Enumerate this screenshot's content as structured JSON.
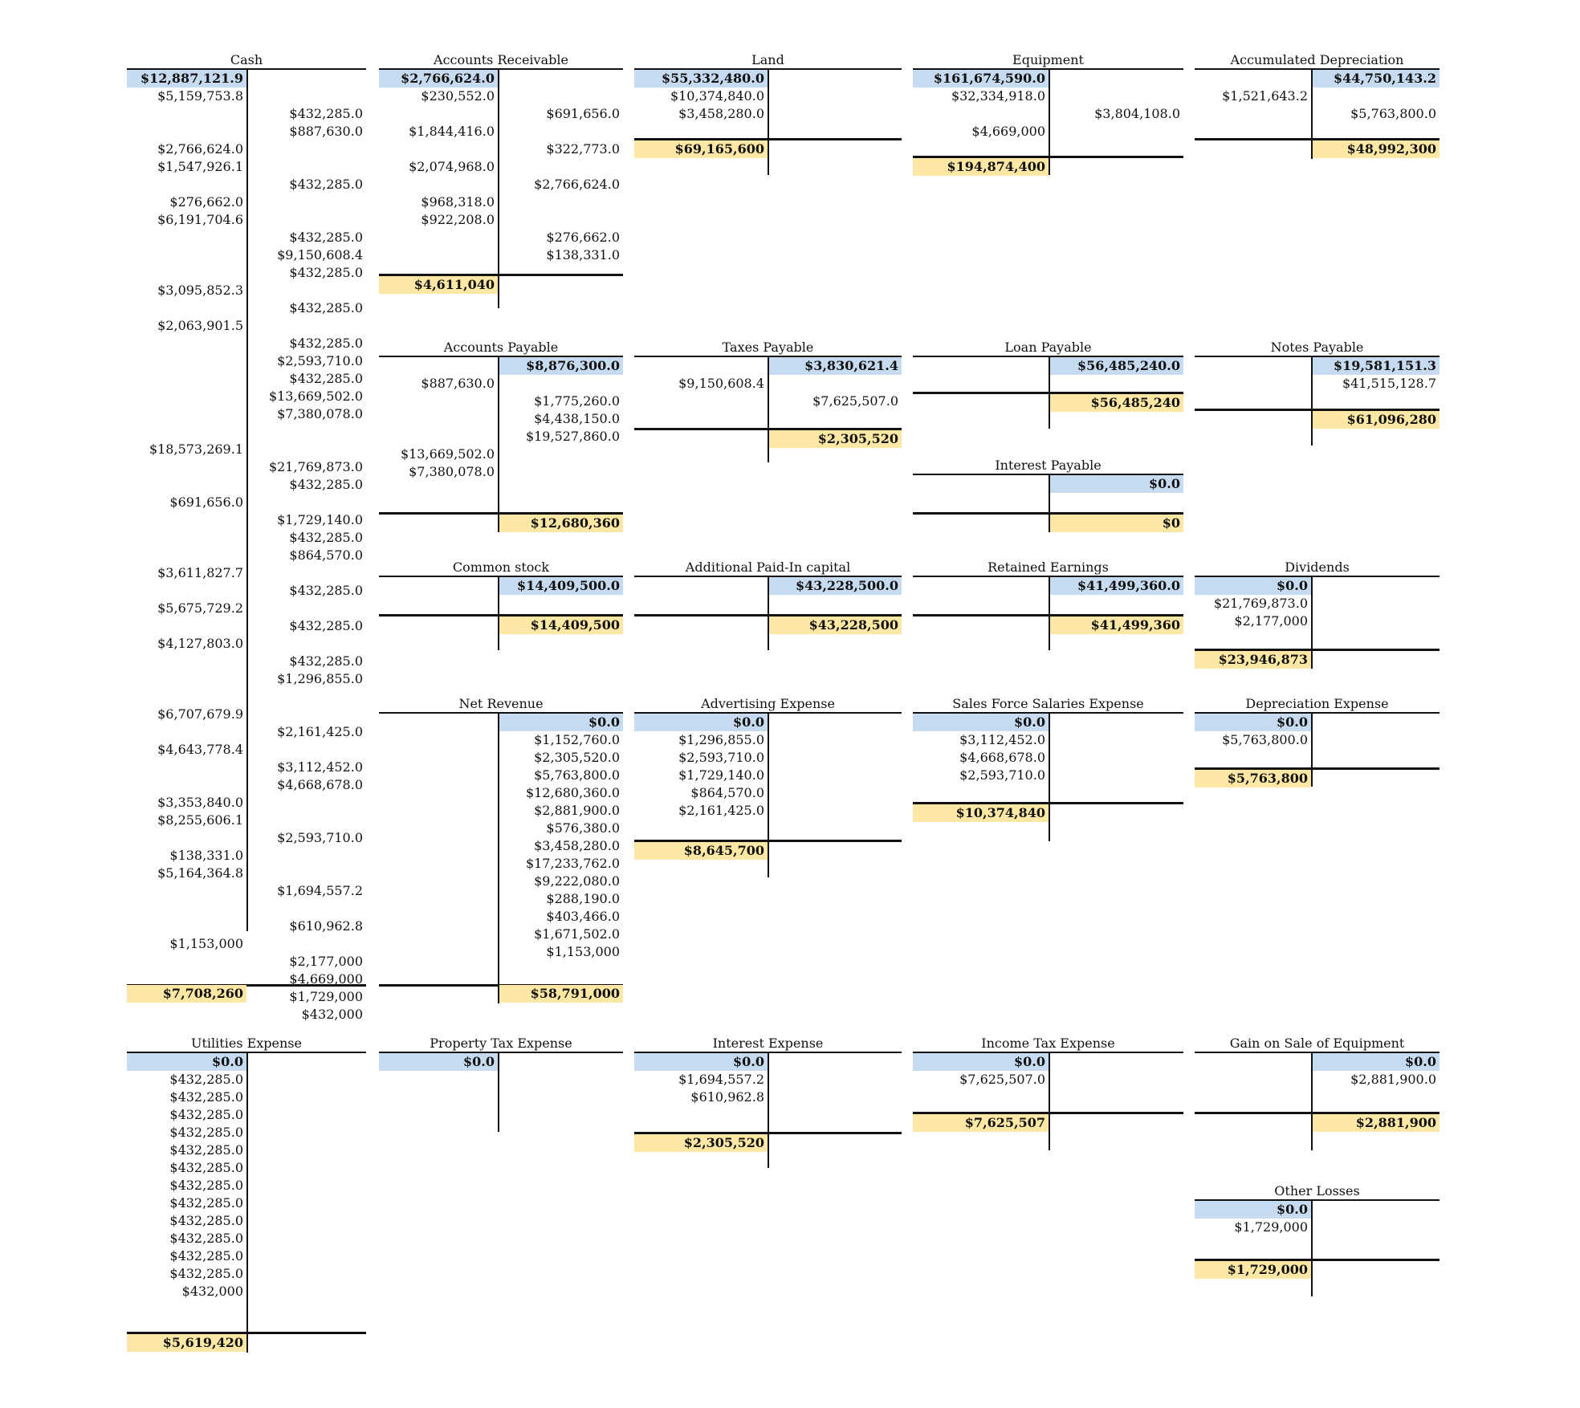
{
  "accounts": [
    {
      "key": "cash",
      "title": "Cash",
      "debit_open": "$12,887,121.9",
      "credit_open": "",
      "debits": [
        "$5,159,753.8",
        "",
        "",
        "$2,766,624.0",
        "$1,547,926.1",
        "",
        "$276,662.0",
        "$6,191,704.6",
        "",
        "",
        "",
        "$3,095,852.3",
        "",
        "$2,063,901.5",
        "",
        "",
        "",
        "",
        "",
        "",
        "$18,573,269.1",
        "",
        "",
        "$691,656.0",
        "",
        "",
        "",
        "$3,611,827.7",
        "",
        "$5,675,729.2",
        "",
        "$4,127,803.0",
        "",
        "",
        "",
        "$6,707,679.9",
        "",
        "$4,643,778.4",
        "",
        "",
        "$3,353,840.0",
        "$8,255,606.1",
        "",
        "$138,331.0",
        "$5,164,364.8",
        "",
        "",
        "",
        "$1,153,000",
        "",
        "",
        "",
        ""
      ],
      "credits": [
        "",
        "$432,285.0",
        "$887,630.0",
        "",
        "",
        "$432,285.0",
        "",
        "",
        "$432,285.0",
        "$9,150,608.4",
        "$432,285.0",
        "",
        "$432,285.0",
        "",
        "$432,285.0",
        "$2,593,710.0",
        "$432,285.0",
        "$13,669,502.0",
        "$7,380,078.0",
        "",
        "",
        "$21,769,873.0",
        "$432,285.0",
        "",
        "$1,729,140.0",
        "$432,285.0",
        "$864,570.0",
        "",
        "$432,285.0",
        "",
        "$432,285.0",
        "",
        "$432,285.0",
        "$1,296,855.0",
        "",
        "",
        "$2,161,425.0",
        "",
        "$3,112,452.0",
        "$4,668,678.0",
        "",
        "",
        "$2,593,710.0",
        "",
        "",
        "$1,694,557.2",
        "",
        "$610,962.8",
        "",
        "$2,177,000",
        "$4,669,000",
        "$1,729,000",
        "$432,000"
      ],
      "debit_total": "$7,708,260",
      "credit_total": ""
    },
    {
      "key": "ar",
      "title": "Accounts Receivable",
      "debit_open": "$2,766,624.0",
      "credit_open": "",
      "debits": [
        "$230,552.0",
        "",
        "$1,844,416.0",
        "",
        "$2,074,968.0",
        "",
        "$968,318.0",
        "$922,208.0",
        "",
        ""
      ],
      "credits": [
        "",
        "$691,656.0",
        "",
        "$322,773.0",
        "",
        "$2,766,624.0",
        "",
        "",
        "$276,662.0",
        "$138,331.0"
      ],
      "debit_total": "$4,611,040",
      "credit_total": ""
    },
    {
      "key": "land",
      "title": "Land",
      "debit_open": "$55,332,480.0",
      "credit_open": "",
      "debits": [
        "$10,374,840.0",
        "$3,458,280.0"
      ],
      "credits": [
        "",
        ""
      ],
      "debit_total": "$69,165,600",
      "credit_total": ""
    },
    {
      "key": "equipment",
      "title": "Equipment",
      "debit_open": "$161,674,590.0",
      "credit_open": "",
      "debits": [
        "$32,334,918.0",
        "",
        "$4,669,000"
      ],
      "credits": [
        "",
        "$3,804,108.0",
        ""
      ],
      "debit_total": "$194,874,400",
      "credit_total": ""
    },
    {
      "key": "accdep",
      "title": "Accumulated Depreciation",
      "debit_open": "",
      "credit_open": "$44,750,143.2",
      "debits": [
        "$1,521,643.2",
        ""
      ],
      "credits": [
        "",
        "$5,763,800.0"
      ],
      "debit_total": "",
      "credit_total": "$48,992,300"
    },
    {
      "key": "ap",
      "title": "Accounts Payable",
      "debit_open": "",
      "credit_open": "$8,876,300.0",
      "debits": [
        "$887,630.0",
        "",
        "",
        "",
        "$13,669,502.0",
        "$7,380,078.0"
      ],
      "credits": [
        "",
        "$1,775,260.0",
        "$4,438,150.0",
        "$19,527,860.0",
        "",
        ""
      ],
      "debit_total": "",
      "credit_total": "$12,680,360"
    },
    {
      "key": "taxes",
      "title": "Taxes Payable",
      "debit_open": "",
      "credit_open": "$3,830,621.4",
      "debits": [
        "$9,150,608.4",
        ""
      ],
      "credits": [
        "",
        "$7,625,507.0"
      ],
      "debit_total": "",
      "credit_total": "$2,305,520"
    },
    {
      "key": "loan",
      "title": "Loan Payable",
      "debit_open": "",
      "credit_open": "$56,485,240.0",
      "debits": [],
      "credits": [],
      "debit_total": "",
      "credit_total": "$56,485,240"
    },
    {
      "key": "notes",
      "title": "Notes Payable",
      "debit_open": "",
      "credit_open": "$19,581,151.3",
      "debits": [
        ""
      ],
      "credits": [
        "$41,515,128.7"
      ],
      "debit_total": "",
      "credit_total": "$61,096,280"
    },
    {
      "key": "interestpay",
      "title": "Interest Payable",
      "debit_open": "",
      "credit_open": "$0.0",
      "debits": [],
      "credits": [],
      "debit_total": "",
      "credit_total": "$0"
    },
    {
      "key": "common",
      "title": "Common stock",
      "debit_open": "",
      "credit_open": "$14,409,500.0",
      "debits": [],
      "credits": [],
      "debit_total": "",
      "credit_total": "$14,409,500"
    },
    {
      "key": "apic",
      "title": "Additional Paid-In capital",
      "debit_open": "",
      "credit_open": "$43,228,500.0",
      "debits": [],
      "credits": [],
      "debit_total": "",
      "credit_total": "$43,228,500"
    },
    {
      "key": "retained",
      "title": "Retained Earnings",
      "debit_open": "",
      "credit_open": "$41,499,360.0",
      "debits": [],
      "credits": [],
      "debit_total": "",
      "credit_total": "$41,499,360"
    },
    {
      "key": "dividends",
      "title": "Dividends",
      "debit_open": "$0.0",
      "credit_open": "",
      "debits": [
        "$21,769,873.0",
        "$2,177,000"
      ],
      "credits": [
        "",
        ""
      ],
      "debit_total": "$23,946,873",
      "credit_total": ""
    },
    {
      "key": "netrev",
      "title": "Net Revenue",
      "debit_open": "",
      "credit_open": "$0.0",
      "debits": [
        "",
        "",
        "",
        "",
        "",
        "",
        "",
        "",
        "",
        "",
        "",
        "",
        "",
        ""
      ],
      "credits": [
        "$1,152,760.0",
        "$2,305,520.0",
        "$5,763,800.0",
        "$12,680,360.0",
        "$2,881,900.0",
        "$576,380.0",
        "$3,458,280.0",
        "$17,233,762.0",
        "$9,222,080.0",
        "$288,190.0",
        "$403,466.0",
        "$1,671,502.0",
        "$1,153,000"
      ],
      "debit_total": "",
      "credit_total": "$58,791,000"
    },
    {
      "key": "adv",
      "title": "Advertising Expense",
      "debit_open": "$0.0",
      "credit_open": "",
      "debits": [
        "$1,296,855.0",
        "$2,593,710.0",
        "$1,729,140.0",
        "$864,570.0",
        "$2,161,425.0"
      ],
      "credits": [
        "",
        "",
        "",
        "",
        ""
      ],
      "debit_total": "$8,645,700",
      "credit_total": ""
    },
    {
      "key": "salaries",
      "title": "Sales Force Salaries Expense",
      "debit_open": "$0.0",
      "credit_open": "",
      "debits": [
        "$3,112,452.0",
        "$4,668,678.0",
        "$2,593,710.0"
      ],
      "credits": [
        "",
        "",
        ""
      ],
      "debit_total": "$10,374,840",
      "credit_total": ""
    },
    {
      "key": "depexp",
      "title": "Depreciation Expense",
      "debit_open": "$0.0",
      "credit_open": "",
      "debits": [
        "$5,763,800.0"
      ],
      "credits": [
        ""
      ],
      "debit_total": "$5,763,800",
      "credit_total": ""
    },
    {
      "key": "utilities",
      "title": "Utilities Expense",
      "debit_open": "$0.0",
      "credit_open": "",
      "debits": [
        "$432,285.0",
        "$432,285.0",
        "$432,285.0",
        "$432,285.0",
        "$432,285.0",
        "$432,285.0",
        "$432,285.0",
        "$432,285.0",
        "$432,285.0",
        "$432,285.0",
        "$432,285.0",
        "$432,285.0",
        "$432,000"
      ],
      "credits": [],
      "debit_total": "$5,619,420",
      "credit_total": ""
    },
    {
      "key": "proptax",
      "title": "Property Tax Expense",
      "debit_open": "$0.0",
      "credit_open": "",
      "debits": [],
      "credits": [],
      "debit_total": "",
      "credit_total": ""
    },
    {
      "key": "intexp",
      "title": "Interest Expense",
      "debit_open": "$0.0",
      "credit_open": "",
      "debits": [
        "$1,694,557.2",
        "$610,962.8"
      ],
      "credits": [
        "",
        ""
      ],
      "debit_total": "$2,305,520",
      "credit_total": ""
    },
    {
      "key": "inctax",
      "title": "Income Tax Expense",
      "debit_open": "$0.0",
      "credit_open": "",
      "debits": [
        "$7,625,507.0"
      ],
      "credits": [
        ""
      ],
      "debit_total": "$7,625,507",
      "credit_total": ""
    },
    {
      "key": "gain",
      "title": "Gain on Sale of Equipment",
      "debit_open": "",
      "credit_open": "$0.0",
      "debits": [
        ""
      ],
      "credits": [
        "$2,881,900.0"
      ],
      "debit_total": "",
      "credit_total": "$2,881,900"
    },
    {
      "key": "otherloss",
      "title": "Other Losses",
      "debit_open": "$0.0",
      "credit_open": "",
      "debits": [
        "$1,729,000"
      ],
      "credits": [
        ""
      ],
      "debit_total": "$1,729,000",
      "credit_total": ""
    }
  ]
}
